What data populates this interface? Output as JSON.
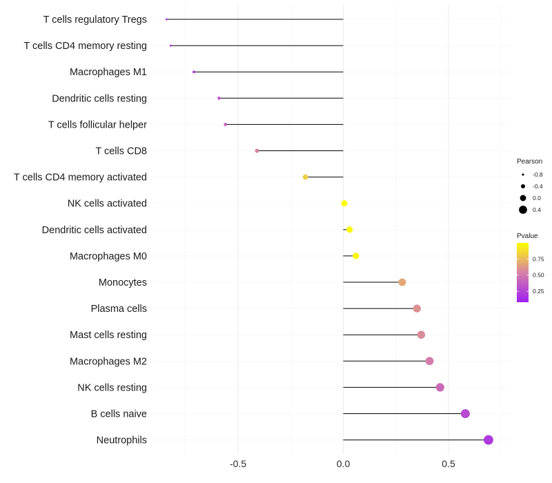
{
  "chart_data": {
    "type": "lollipop",
    "title": "",
    "xlabel": "",
    "ylabel": "",
    "xlim": [
      -1.0,
      0.75
    ],
    "xticks": [
      -0.5,
      0.0,
      0.5
    ],
    "xtick_labels": [
      "-0.5",
      "0.0",
      "0.5"
    ],
    "grid": true,
    "categories": [
      "T cells regulatory  Tregs",
      "T cells CD4 memory resting",
      "Macrophages M1",
      "Dendritic cells resting",
      "T cells follicular helper",
      "T cells CD8",
      "T cells CD4 memory activated",
      "NK cells activated",
      "Dendritic cells activated",
      "Macrophages M0",
      "Monocytes",
      "Plasma cells",
      "Mast cells resting",
      "Macrophages M2",
      "NK cells resting",
      "B cells naive",
      "Neutrophils"
    ],
    "values": [
      -0.84,
      -0.82,
      -0.71,
      -0.59,
      -0.56,
      -0.41,
      -0.18,
      0.005,
      0.03,
      0.06,
      0.28,
      0.35,
      0.37,
      0.41,
      0.46,
      0.58,
      0.69
    ],
    "pvalues": [
      0.15,
      0.15,
      0.18,
      0.35,
      0.4,
      0.55,
      0.82,
      0.99,
      0.98,
      0.97,
      0.68,
      0.6,
      0.58,
      0.52,
      0.44,
      0.28,
      0.2
    ],
    "legend_size": {
      "title": "Pearson",
      "entries": [
        "-0.8",
        "-0.4",
        "0.0",
        "0.4"
      ],
      "values": [
        -0.8,
        -0.4,
        0.0,
        0.4
      ]
    },
    "legend_color": {
      "title": "Pvalue",
      "entries": [
        "0.75",
        "0.50",
        "0.25"
      ],
      "values": [
        0.75,
        0.5,
        0.25
      ],
      "range": [
        0.08,
        1.0
      ],
      "low_color": "#a020f0",
      "mid_color": "#d680a8",
      "high_color": "#ffff00"
    },
    "legend_position": "right"
  }
}
